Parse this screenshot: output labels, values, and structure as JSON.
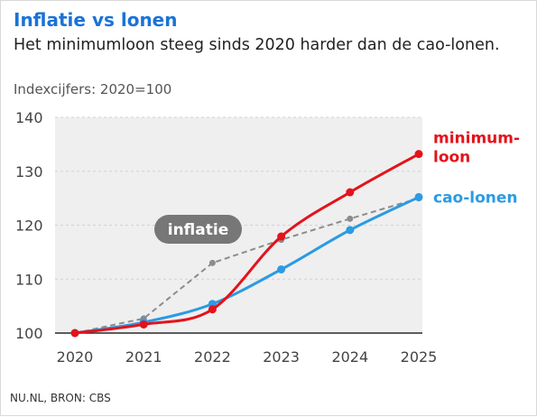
{
  "header": {
    "title": "Inflatie vs lonen",
    "subtitle": "Het minimumloon steeg sinds 2020 harder dan de cao-lonen.",
    "unit_note": "Indexcijfers: 2020=100"
  },
  "footer": {
    "source": "NU.NL, BRON: CBS"
  },
  "chart_data": {
    "type": "line",
    "title": "Inflatie vs lonen",
    "subtitle": "Het minimumloon steeg sinds 2020 harder dan de cao-lonen.",
    "ylabel": "Indexcijfers: 2020=100",
    "x": [
      "2020",
      "2021",
      "2022",
      "2023",
      "2024",
      "2025"
    ],
    "ylim": [
      100,
      140
    ],
    "yticks": [
      100,
      110,
      120,
      130,
      140
    ],
    "grid": true,
    "series": [
      {
        "name": "inflatie",
        "values": [
          100,
          102.7,
          113,
          117.3,
          121.2,
          125
        ],
        "color": "#8c8c8c",
        "dashed": true,
        "label_lines": [
          "inflatie"
        ]
      },
      {
        "name": "cao-lonen",
        "values": [
          100,
          102,
          105.4,
          111.8,
          119.1,
          125.2
        ],
        "color": "#2b9be3",
        "dashed": false,
        "label_lines": [
          "cao-lonen"
        ]
      },
      {
        "name": "minimum-loon",
        "values": [
          100,
          101.6,
          104.4,
          117.9,
          126.1,
          133.2
        ],
        "color": "#e3131b",
        "dashed": false,
        "label_lines": [
          "minimum-",
          "loon"
        ]
      }
    ]
  }
}
